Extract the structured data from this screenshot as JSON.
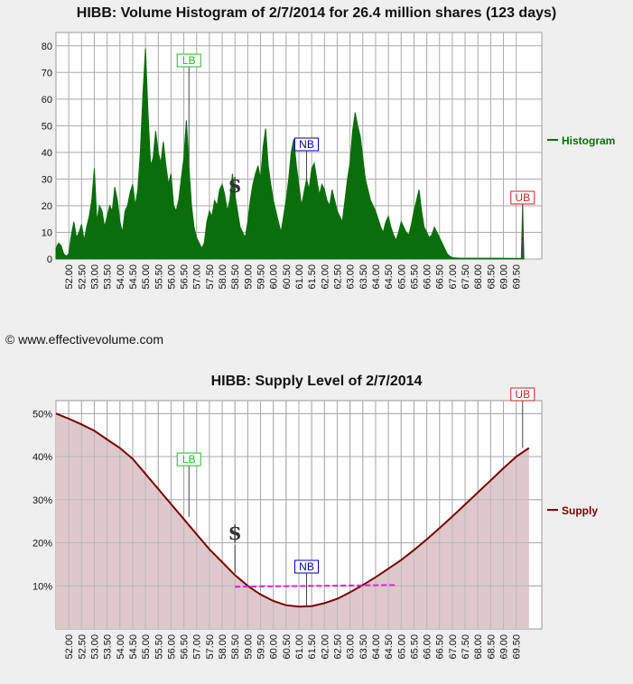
{
  "histogram": {
    "title": "HIBB: Volume Histogram of 2/7/2014 for 26.4 million shares (123 days)",
    "legend_label": "Histogram",
    "color": "#0a6e0a"
  },
  "supply": {
    "title": "HIBB: Supply Level of 2/7/2014",
    "legend_label": "Supply",
    "color": "#7a0000",
    "fill_color": "#ddc8cc",
    "dashed_color": "#e020e0"
  },
  "copyright": "© www.effectivevolume.com",
  "markers": {
    "lb": "LB",
    "nb": "NB",
    "ub": "UB",
    "dollar": "$"
  },
  "colors": {
    "lb": "#22bb22",
    "nb": "#0000aa",
    "ub": "#cc2222",
    "dollar": "#333333"
  },
  "chart_data": [
    {
      "type": "area",
      "title": "HIBB: Volume Histogram of 2/7/2014 for 26.4 million shares (123 days)",
      "series": [
        {
          "name": "Histogram"
        }
      ],
      "xlim": [
        51.5,
        70.5
      ],
      "ylim": [
        0,
        85
      ],
      "x_ticks": [
        "52.00",
        "52.50",
        "53.00",
        "53.50",
        "54.00",
        "54.50",
        "55.00",
        "55.50",
        "56.00",
        "56.50",
        "57.00",
        "57.50",
        "58.00",
        "58.50",
        "59.00",
        "59.50",
        "60.00",
        "60.50",
        "61.00",
        "61.50",
        "62.00",
        "62.50",
        "63.00",
        "63.50",
        "64.00",
        "64.50",
        "65.00",
        "65.50",
        "66.00",
        "66.50",
        "67.00",
        "67.50",
        "68.00",
        "68.50",
        "69.00",
        "69.50"
      ],
      "y_ticks": [
        "0",
        "10",
        "20",
        "30",
        "40",
        "50",
        "60",
        "70",
        "80"
      ],
      "points": [
        [
          51.5,
          4
        ],
        [
          51.6,
          6
        ],
        [
          51.7,
          5
        ],
        [
          51.8,
          2
        ],
        [
          51.9,
          1
        ],
        [
          52.0,
          2
        ],
        [
          52.1,
          9
        ],
        [
          52.2,
          14
        ],
        [
          52.3,
          8
        ],
        [
          52.4,
          10
        ],
        [
          52.5,
          13
        ],
        [
          52.6,
          7
        ],
        [
          52.7,
          12
        ],
        [
          52.8,
          16
        ],
        [
          52.9,
          22
        ],
        [
          53.0,
          34
        ],
        [
          53.1,
          14
        ],
        [
          53.2,
          20
        ],
        [
          53.3,
          18
        ],
        [
          53.4,
          12
        ],
        [
          53.5,
          16
        ],
        [
          53.6,
          20
        ],
        [
          53.7,
          18
        ],
        [
          53.8,
          27
        ],
        [
          53.9,
          22
        ],
        [
          54.0,
          14
        ],
        [
          54.1,
          10
        ],
        [
          54.2,
          18
        ],
        [
          54.3,
          20
        ],
        [
          54.4,
          25
        ],
        [
          54.5,
          28
        ],
        [
          54.6,
          20
        ],
        [
          54.7,
          26
        ],
        [
          54.8,
          40
        ],
        [
          54.9,
          62
        ],
        [
          55.0,
          79
        ],
        [
          55.1,
          55
        ],
        [
          55.2,
          35
        ],
        [
          55.3,
          38
        ],
        [
          55.4,
          48
        ],
        [
          55.5,
          40
        ],
        [
          55.6,
          36
        ],
        [
          55.7,
          44
        ],
        [
          55.8,
          35
        ],
        [
          55.9,
          28
        ],
        [
          56.0,
          32
        ],
        [
          56.1,
          20
        ],
        [
          56.2,
          18
        ],
        [
          56.3,
          22
        ],
        [
          56.4,
          30
        ],
        [
          56.5,
          38
        ],
        [
          56.6,
          52
        ],
        [
          56.7,
          35
        ],
        [
          56.8,
          20
        ],
        [
          56.9,
          12
        ],
        [
          57.0,
          8
        ],
        [
          57.1,
          6
        ],
        [
          57.2,
          4
        ],
        [
          57.3,
          6
        ],
        [
          57.4,
          14
        ],
        [
          57.5,
          18
        ],
        [
          57.6,
          16
        ],
        [
          57.7,
          22
        ],
        [
          57.8,
          20
        ],
        [
          57.9,
          26
        ],
        [
          58.0,
          28
        ],
        [
          58.1,
          24
        ],
        [
          58.2,
          18
        ],
        [
          58.3,
          22
        ],
        [
          58.4,
          32
        ],
        [
          58.5,
          24
        ],
        [
          58.6,
          18
        ],
        [
          58.7,
          12
        ],
        [
          58.8,
          10
        ],
        [
          58.9,
          8
        ],
        [
          59.0,
          14
        ],
        [
          59.1,
          22
        ],
        [
          59.2,
          28
        ],
        [
          59.3,
          32
        ],
        [
          59.4,
          35
        ],
        [
          59.5,
          30
        ],
        [
          59.6,
          42
        ],
        [
          59.7,
          49
        ],
        [
          59.8,
          35
        ],
        [
          59.9,
          28
        ],
        [
          60.0,
          22
        ],
        [
          60.1,
          18
        ],
        [
          60.2,
          14
        ],
        [
          60.3,
          10
        ],
        [
          60.4,
          16
        ],
        [
          60.5,
          22
        ],
        [
          60.6,
          30
        ],
        [
          60.7,
          40
        ],
        [
          60.8,
          45
        ],
        [
          60.9,
          35
        ],
        [
          61.0,
          28
        ],
        [
          61.1,
          20
        ],
        [
          61.2,
          25
        ],
        [
          61.3,
          30
        ],
        [
          61.4,
          26
        ],
        [
          61.5,
          34
        ],
        [
          61.6,
          36
        ],
        [
          61.7,
          30
        ],
        [
          61.8,
          24
        ],
        [
          61.9,
          28
        ],
        [
          62.0,
          26
        ],
        [
          62.1,
          22
        ],
        [
          62.2,
          20
        ],
        [
          62.3,
          26
        ],
        [
          62.4,
          22
        ],
        [
          62.5,
          18
        ],
        [
          62.6,
          16
        ],
        [
          62.7,
          14
        ],
        [
          62.8,
          22
        ],
        [
          62.9,
          30
        ],
        [
          63.0,
          36
        ],
        [
          63.1,
          48
        ],
        [
          63.2,
          55
        ],
        [
          63.3,
          50
        ],
        [
          63.4,
          46
        ],
        [
          63.5,
          38
        ],
        [
          63.6,
          30
        ],
        [
          63.7,
          26
        ],
        [
          63.8,
          22
        ],
        [
          63.9,
          20
        ],
        [
          64.0,
          18
        ],
        [
          64.1,
          15
        ],
        [
          64.2,
          12
        ],
        [
          64.3,
          10
        ],
        [
          64.4,
          14
        ],
        [
          64.5,
          16
        ],
        [
          64.6,
          12
        ],
        [
          64.7,
          9
        ],
        [
          64.8,
          7
        ],
        [
          64.9,
          10
        ],
        [
          65.0,
          14
        ],
        [
          65.1,
          12
        ],
        [
          65.2,
          10
        ],
        [
          65.3,
          9
        ],
        [
          65.4,
          13
        ],
        [
          65.5,
          18
        ],
        [
          65.6,
          22
        ],
        [
          65.7,
          26
        ],
        [
          65.8,
          18
        ],
        [
          65.9,
          12
        ],
        [
          66.0,
          10
        ],
        [
          66.1,
          8
        ],
        [
          66.2,
          9
        ],
        [
          66.3,
          12
        ],
        [
          66.4,
          10
        ],
        [
          66.5,
          8
        ],
        [
          66.6,
          6
        ],
        [
          66.7,
          4
        ],
        [
          66.8,
          2
        ],
        [
          66.9,
          1
        ],
        [
          67.0,
          0.5
        ],
        [
          67.3,
          0.3
        ],
        [
          68.5,
          0.3
        ],
        [
          69.7,
          0.2
        ],
        [
          69.75,
          20
        ],
        [
          69.8,
          0
        ]
      ]
    },
    {
      "type": "area",
      "title": "HIBB: Supply Level of 2/7/2014",
      "series": [
        {
          "name": "Supply"
        }
      ],
      "xlim": [
        51.5,
        70.5
      ],
      "ylim": [
        0,
        53
      ],
      "x_ticks": [
        "52.00",
        "52.50",
        "53.00",
        "53.50",
        "54.00",
        "54.50",
        "55.00",
        "55.50",
        "56.00",
        "56.50",
        "57.00",
        "57.50",
        "58.00",
        "58.50",
        "59.00",
        "59.50",
        "60.00",
        "60.50",
        "61.00",
        "61.50",
        "62.00",
        "62.50",
        "63.00",
        "63.50",
        "64.00",
        "64.50",
        "65.00",
        "65.50",
        "66.00",
        "66.50",
        "67.00",
        "67.50",
        "68.00",
        "68.50",
        "69.00",
        "69.50"
      ],
      "y_ticks": [
        "10%",
        "20%",
        "30%",
        "40%",
        "50%"
      ],
      "points": [
        [
          51.5,
          50
        ],
        [
          52.0,
          48.8
        ],
        [
          52.5,
          47.5
        ],
        [
          53.0,
          46
        ],
        [
          53.5,
          44
        ],
        [
          54.0,
          42
        ],
        [
          54.5,
          39.5
        ],
        [
          55.0,
          36
        ],
        [
          55.5,
          32.5
        ],
        [
          56.0,
          29
        ],
        [
          56.5,
          25.5
        ],
        [
          57.0,
          22
        ],
        [
          57.5,
          18.5
        ],
        [
          58.0,
          15.5
        ],
        [
          58.5,
          12.5
        ],
        [
          59.0,
          10
        ],
        [
          59.5,
          8
        ],
        [
          60.0,
          6.5
        ],
        [
          60.5,
          5.5
        ],
        [
          61.0,
          5.2
        ],
        [
          61.5,
          5.3
        ],
        [
          62.0,
          6
        ],
        [
          62.5,
          7
        ],
        [
          63.0,
          8.5
        ],
        [
          63.5,
          10.2
        ],
        [
          64.0,
          12
        ],
        [
          64.5,
          14
        ],
        [
          65.0,
          16
        ],
        [
          65.5,
          18.3
        ],
        [
          66.0,
          20.8
        ],
        [
          66.5,
          23.4
        ],
        [
          67.0,
          26.1
        ],
        [
          67.5,
          28.9
        ],
        [
          68.0,
          31.7
        ],
        [
          68.5,
          34.5
        ],
        [
          69.0,
          37.3
        ],
        [
          69.5,
          40
        ],
        [
          70.0,
          42
        ]
      ],
      "average_line": {
        "x_start": 58.5,
        "x_end": 64.8,
        "y_start": 9.8,
        "y_end": 10.2
      }
    }
  ]
}
